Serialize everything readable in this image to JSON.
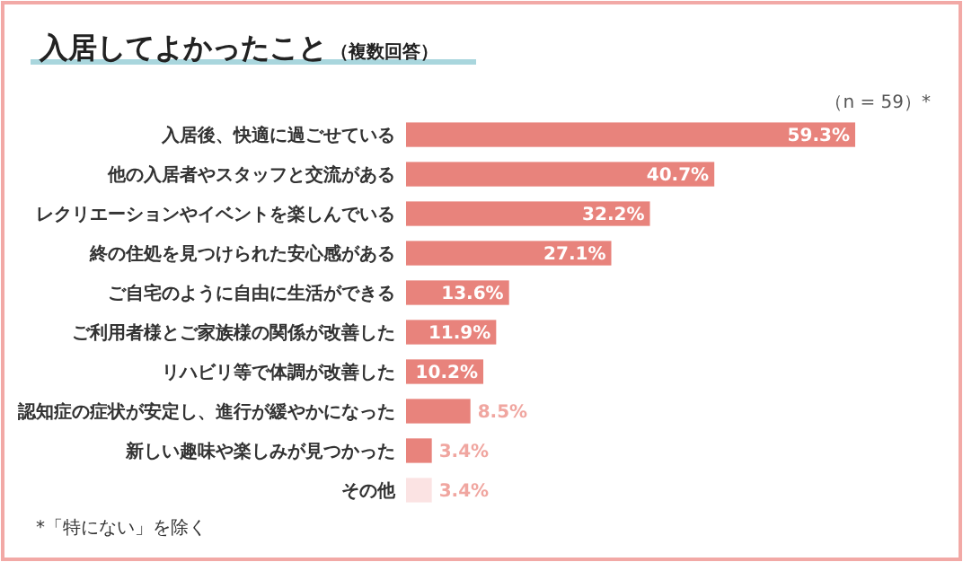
{
  "chart_data": {
    "type": "bar",
    "orientation": "horizontal",
    "title": "入居してよかったこと",
    "subtitle": "（複数回答）",
    "categories": [
      "入居後、快適に過ごせている",
      "他の入居者やスタッフと交流がある",
      "レクリエーションやイベントを楽しんでいる",
      "終の住処を見つけられた安心感がある",
      "ご自宅のように自由に生活ができる",
      "ご利用者様とご家族様の関係が改善した",
      "リハビリ等で体調が改善した",
      "認知症の症状が安定し、進行が緩やかになった",
      "新しい趣味や楽しみが見つかった",
      "その他"
    ],
    "values": [
      59.3,
      40.7,
      32.2,
      27.1,
      13.6,
      11.9,
      10.2,
      8.5,
      3.4,
      3.4
    ],
    "value_labels": [
      "59.3%",
      "40.7%",
      "32.2%",
      "27.1%",
      "13.6%",
      "11.9%",
      "10.2%",
      "8.5%",
      "3.4%",
      "3.4%"
    ],
    "colors": [
      "#e8837c",
      "#e8837c",
      "#e8837c",
      "#e8837c",
      "#e8837c",
      "#e8837c",
      "#e8837c",
      "#e8837c",
      "#e8837c",
      "#fbe3e3"
    ],
    "annotations": [
      "（n = 59）*",
      "*「特にない」を除く"
    ]
  }
}
